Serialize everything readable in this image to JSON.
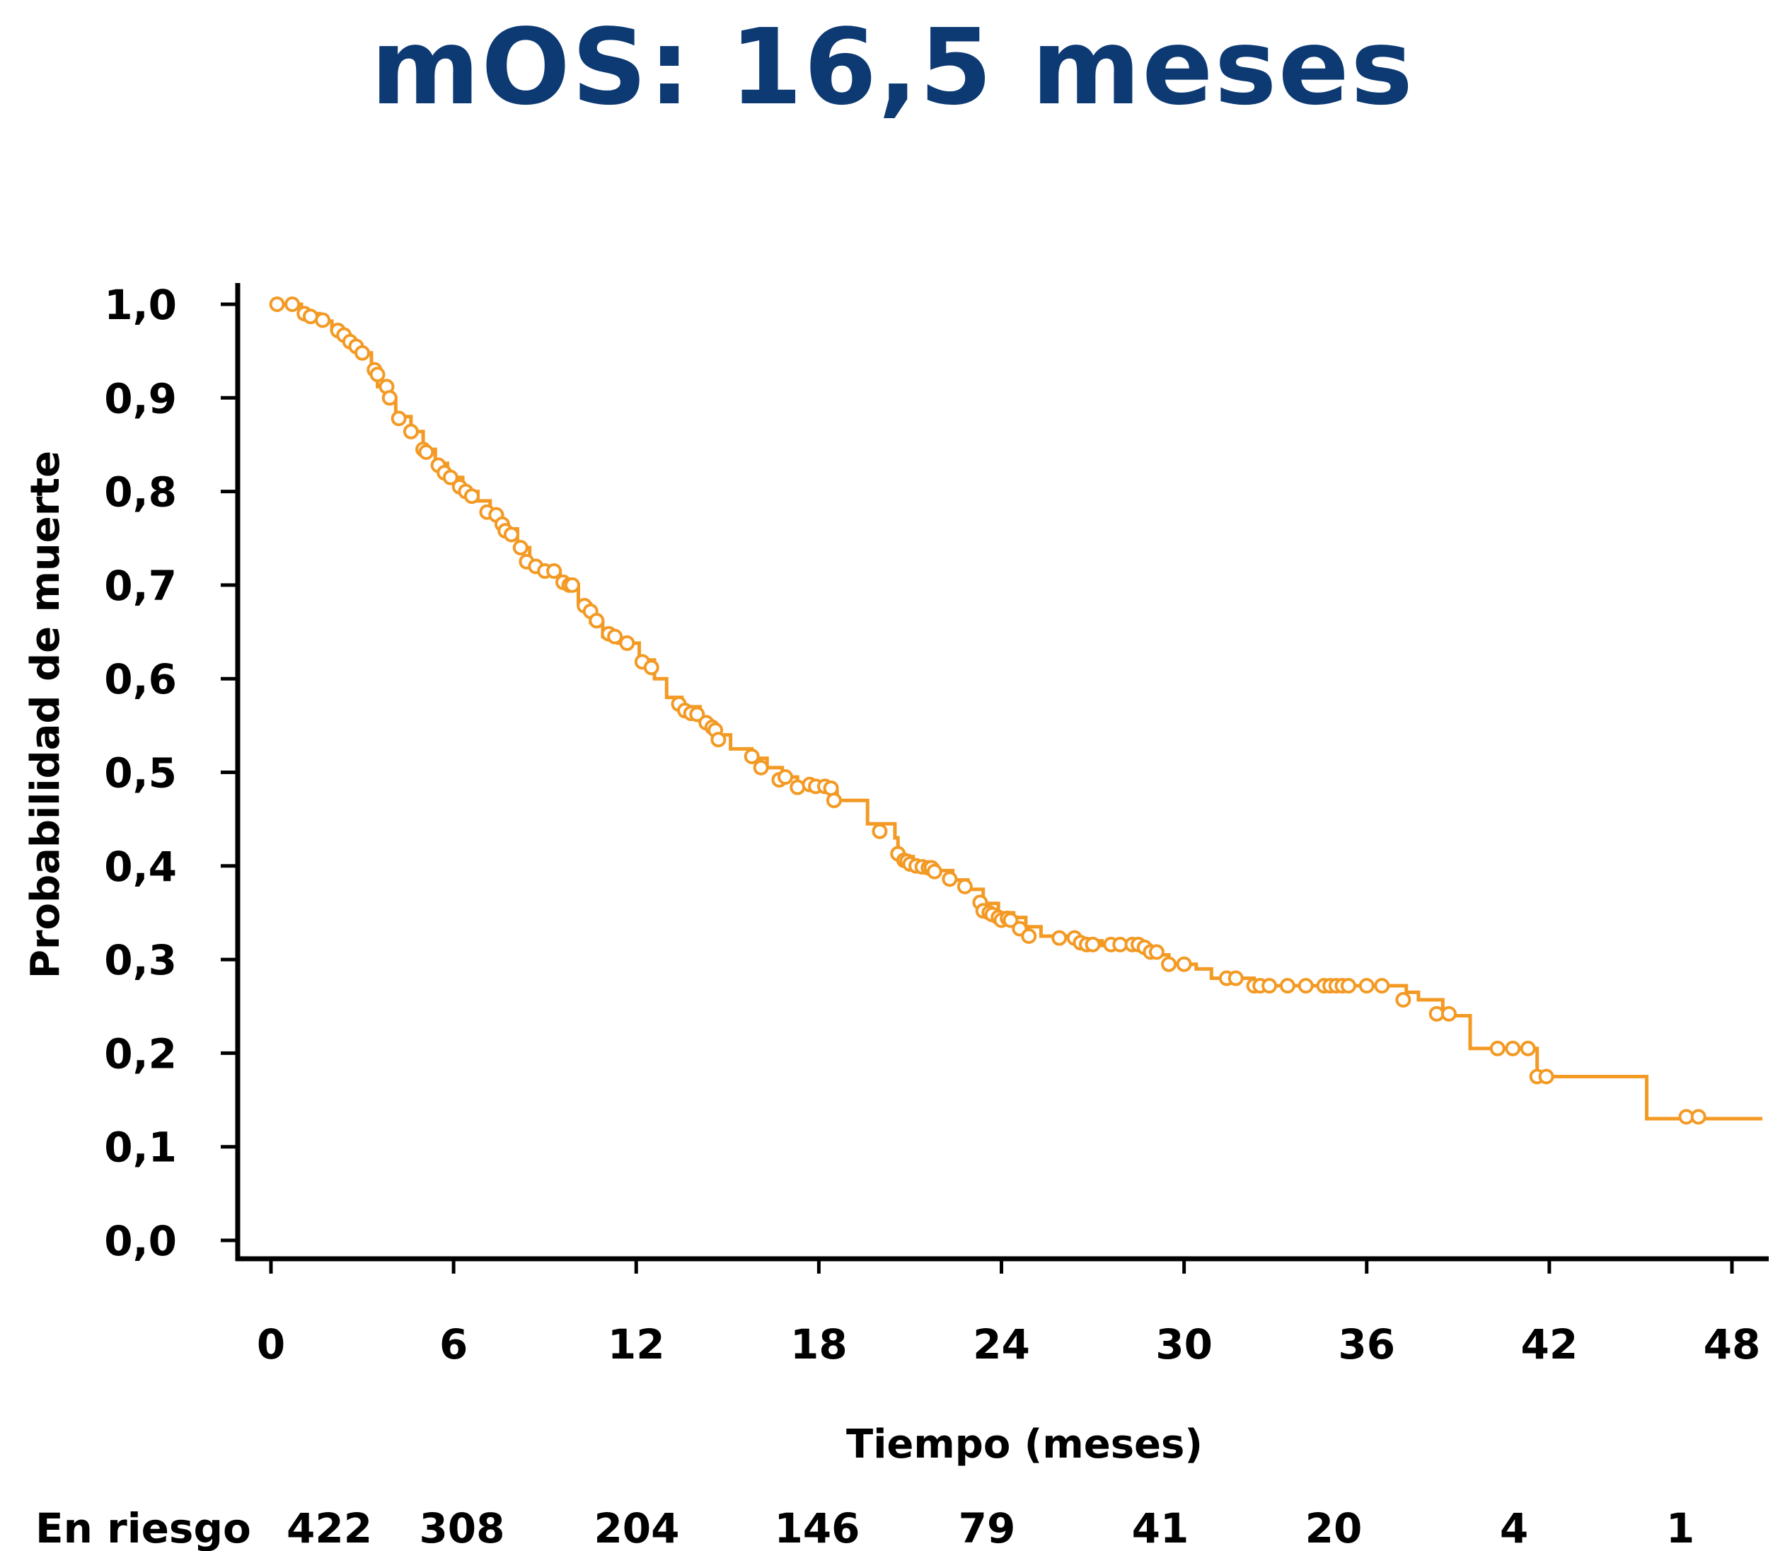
{
  "colors": {
    "title": "#0d3a73",
    "curve": "#f39a25",
    "axis": "#000000"
  },
  "chart_data": {
    "type": "line",
    "subtype": "kaplan-meier",
    "title": "mOS: 16,5 meses",
    "xlabel": "Tiempo (meses)",
    "ylabel": "Probabilidad de muerte",
    "xlim": [
      0,
      49
    ],
    "ylim": [
      0,
      1
    ],
    "x_ticks": [
      0,
      6,
      12,
      18,
      24,
      30,
      36,
      42,
      48
    ],
    "x_tick_labels": [
      "0",
      "6",
      "12",
      "18",
      "24",
      "30",
      "36",
      "42",
      "48"
    ],
    "y_ticks": [
      0,
      0.1,
      0.2,
      0.3,
      0.4,
      0.5,
      0.6,
      0.7,
      0.8,
      0.9,
      1.0
    ],
    "y_tick_labels": [
      "0,0",
      "0,1",
      "0,2",
      "0,3",
      "0,4",
      "0,5",
      "0,6",
      "0,7",
      "0,8",
      "0,9",
      "1,0"
    ],
    "series": [
      {
        "name": "OS",
        "curve": [
          [
            0,
            1.0
          ],
          [
            0.6,
            1.0
          ],
          [
            1.0,
            0.99
          ],
          [
            1.6,
            0.982
          ],
          [
            2.0,
            0.972
          ],
          [
            2.5,
            0.96
          ],
          [
            2.9,
            0.948
          ],
          [
            3.3,
            0.93
          ],
          [
            3.5,
            0.912
          ],
          [
            3.8,
            0.9
          ],
          [
            4.1,
            0.88
          ],
          [
            4.6,
            0.864
          ],
          [
            5.0,
            0.845
          ],
          [
            5.4,
            0.83
          ],
          [
            5.8,
            0.815
          ],
          [
            6.3,
            0.8
          ],
          [
            6.8,
            0.79
          ],
          [
            7.2,
            0.775
          ],
          [
            7.6,
            0.76
          ],
          [
            8.1,
            0.74
          ],
          [
            8.5,
            0.72
          ],
          [
            9.1,
            0.715
          ],
          [
            9.5,
            0.7
          ],
          [
            10.1,
            0.68
          ],
          [
            10.5,
            0.66
          ],
          [
            10.9,
            0.645
          ],
          [
            11.4,
            0.638
          ],
          [
            12.1,
            0.62
          ],
          [
            12.6,
            0.6
          ],
          [
            13.0,
            0.58
          ],
          [
            13.5,
            0.57
          ],
          [
            14.1,
            0.555
          ],
          [
            14.5,
            0.54
          ],
          [
            15.1,
            0.525
          ],
          [
            15.8,
            0.515
          ],
          [
            16.3,
            0.505
          ],
          [
            16.8,
            0.495
          ],
          [
            17.3,
            0.488
          ],
          [
            17.7,
            0.485
          ],
          [
            18.2,
            0.48
          ],
          [
            18.6,
            0.47
          ],
          [
            19.3,
            0.47
          ],
          [
            19.6,
            0.445
          ],
          [
            20.1,
            0.445
          ],
          [
            20.5,
            0.43
          ],
          [
            20.6,
            0.41
          ],
          [
            21.1,
            0.4
          ],
          [
            21.9,
            0.395
          ],
          [
            22.4,
            0.385
          ],
          [
            22.9,
            0.375
          ],
          [
            23.4,
            0.36
          ],
          [
            23.9,
            0.35
          ],
          [
            24.4,
            0.345
          ],
          [
            24.8,
            0.335
          ],
          [
            25.3,
            0.325
          ],
          [
            26.3,
            0.32
          ],
          [
            27.3,
            0.315
          ],
          [
            28.4,
            0.315
          ],
          [
            28.9,
            0.305
          ],
          [
            29.5,
            0.295
          ],
          [
            30.4,
            0.29
          ],
          [
            30.9,
            0.28
          ],
          [
            31.9,
            0.28
          ],
          [
            32.3,
            0.272
          ],
          [
            36.8,
            0.272
          ],
          [
            37.3,
            0.265
          ],
          [
            37.7,
            0.257
          ],
          [
            38.3,
            0.257
          ],
          [
            38.5,
            0.24
          ],
          [
            39.3,
            0.24
          ],
          [
            39.4,
            0.205
          ],
          [
            41.4,
            0.205
          ],
          [
            41.6,
            0.175
          ],
          [
            45.1,
            0.175
          ],
          [
            45.2,
            0.13
          ],
          [
            49.0,
            0.13
          ]
        ],
        "censored": [
          [
            0.2,
            1.0
          ],
          [
            0.7,
            1.0
          ],
          [
            1.1,
            0.99
          ],
          [
            1.3,
            0.987
          ],
          [
            1.7,
            0.983
          ],
          [
            2.2,
            0.972
          ],
          [
            2.4,
            0.967
          ],
          [
            2.6,
            0.96
          ],
          [
            2.8,
            0.955
          ],
          [
            3.0,
            0.948
          ],
          [
            3.4,
            0.93
          ],
          [
            3.5,
            0.925
          ],
          [
            3.8,
            0.912
          ],
          [
            3.9,
            0.9
          ],
          [
            4.2,
            0.878
          ],
          [
            4.6,
            0.864
          ],
          [
            5.0,
            0.845
          ],
          [
            5.1,
            0.842
          ],
          [
            5.5,
            0.828
          ],
          [
            5.7,
            0.82
          ],
          [
            5.9,
            0.815
          ],
          [
            6.2,
            0.805
          ],
          [
            6.4,
            0.8
          ],
          [
            6.6,
            0.795
          ],
          [
            7.1,
            0.778
          ],
          [
            7.4,
            0.775
          ],
          [
            7.6,
            0.765
          ],
          [
            7.7,
            0.758
          ],
          [
            7.9,
            0.754
          ],
          [
            8.2,
            0.74
          ],
          [
            8.4,
            0.725
          ],
          [
            8.7,
            0.72
          ],
          [
            9.0,
            0.715
          ],
          [
            9.3,
            0.715
          ],
          [
            9.6,
            0.703
          ],
          [
            9.8,
            0.7
          ],
          [
            9.9,
            0.7
          ],
          [
            10.3,
            0.678
          ],
          [
            10.5,
            0.672
          ],
          [
            10.7,
            0.662
          ],
          [
            11.1,
            0.648
          ],
          [
            11.3,
            0.645
          ],
          [
            11.7,
            0.638
          ],
          [
            12.2,
            0.618
          ],
          [
            12.5,
            0.612
          ],
          [
            13.4,
            0.573
          ],
          [
            13.6,
            0.566
          ],
          [
            13.8,
            0.563
          ],
          [
            14.0,
            0.562
          ],
          [
            14.3,
            0.553
          ],
          [
            14.5,
            0.548
          ],
          [
            14.6,
            0.545
          ],
          [
            14.7,
            0.535
          ],
          [
            15.8,
            0.517
          ],
          [
            16.1,
            0.505
          ],
          [
            16.7,
            0.492
          ],
          [
            16.9,
            0.495
          ],
          [
            17.3,
            0.484
          ],
          [
            17.7,
            0.487
          ],
          [
            17.9,
            0.485
          ],
          [
            18.2,
            0.485
          ],
          [
            18.4,
            0.483
          ],
          [
            18.5,
            0.47
          ],
          [
            20.0,
            0.437
          ],
          [
            20.6,
            0.413
          ],
          [
            20.8,
            0.406
          ],
          [
            20.9,
            0.405
          ],
          [
            21.0,
            0.402
          ],
          [
            21.2,
            0.4
          ],
          [
            21.4,
            0.399
          ],
          [
            21.6,
            0.398
          ],
          [
            21.7,
            0.398
          ],
          [
            21.8,
            0.394
          ],
          [
            22.3,
            0.386
          ],
          [
            22.8,
            0.378
          ],
          [
            23.3,
            0.361
          ],
          [
            23.4,
            0.352
          ],
          [
            23.6,
            0.35
          ],
          [
            23.7,
            0.348
          ],
          [
            23.9,
            0.345
          ],
          [
            24.0,
            0.342
          ],
          [
            24.2,
            0.344
          ],
          [
            24.3,
            0.342
          ],
          [
            24.6,
            0.333
          ],
          [
            24.9,
            0.325
          ],
          [
            25.9,
            0.323
          ],
          [
            26.4,
            0.323
          ],
          [
            26.6,
            0.318
          ],
          [
            26.8,
            0.316
          ],
          [
            27.0,
            0.316
          ],
          [
            27.6,
            0.316
          ],
          [
            27.9,
            0.316
          ],
          [
            28.3,
            0.316
          ],
          [
            28.5,
            0.316
          ],
          [
            28.7,
            0.313
          ],
          [
            28.9,
            0.308
          ],
          [
            29.1,
            0.308
          ],
          [
            29.5,
            0.295
          ],
          [
            30.0,
            0.295
          ],
          [
            31.4,
            0.28
          ],
          [
            31.7,
            0.28
          ],
          [
            32.3,
            0.272
          ],
          [
            32.5,
            0.272
          ],
          [
            32.8,
            0.272
          ],
          [
            33.4,
            0.272
          ],
          [
            34.0,
            0.272
          ],
          [
            34.6,
            0.272
          ],
          [
            34.8,
            0.272
          ],
          [
            35.0,
            0.272
          ],
          [
            35.2,
            0.272
          ],
          [
            35.4,
            0.272
          ],
          [
            36.0,
            0.272
          ],
          [
            36.5,
            0.272
          ],
          [
            37.2,
            0.257
          ],
          [
            38.3,
            0.242
          ],
          [
            38.7,
            0.242
          ],
          [
            40.3,
            0.205
          ],
          [
            40.8,
            0.205
          ],
          [
            41.3,
            0.205
          ],
          [
            41.6,
            0.175
          ],
          [
            41.9,
            0.175
          ],
          [
            46.5,
            0.132
          ],
          [
            46.9,
            0.132
          ]
        ]
      }
    ],
    "at_risk": {
      "label": "En riesgo",
      "values": [
        "422",
        "308",
        "204",
        "146",
        "79",
        "41",
        "20",
        "4",
        "1"
      ]
    }
  }
}
